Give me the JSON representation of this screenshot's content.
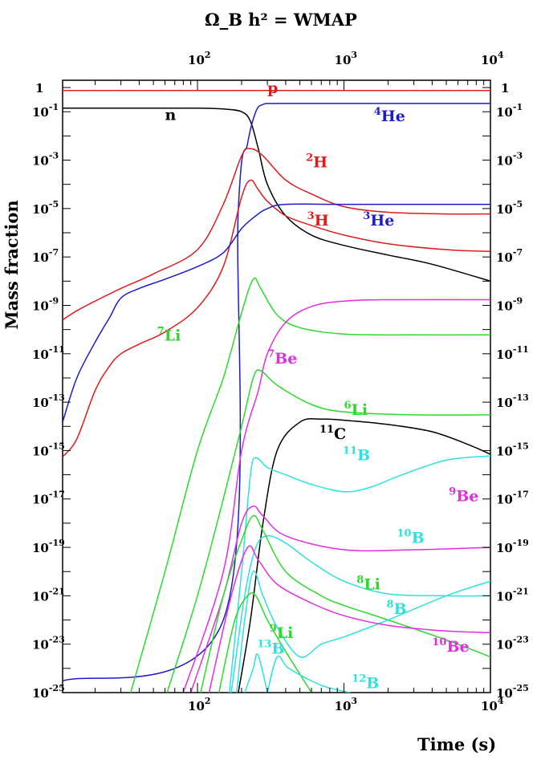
{
  "chart_data": {
    "type": "line",
    "title": "Ω_B h² = WMAP",
    "xlabel": "Time (s)",
    "ylabel": "Mass fraction",
    "x_scale": "log",
    "y_scale": "log",
    "xlim": [
      12,
      10000
    ],
    "ylim": [
      1e-25,
      2
    ],
    "x_ticks": [
      {
        "value": 100,
        "base": "10",
        "exp": "2"
      },
      {
        "value": 1000,
        "base": "10",
        "exp": "3"
      },
      {
        "value": 10000,
        "base": "10",
        "exp": "4"
      }
    ],
    "y_ticks": [
      {
        "value": 1,
        "base": "1",
        "exp": ""
      },
      {
        "value": 0.1,
        "base": "10",
        "exp": "-1"
      },
      {
        "value": 0.001,
        "base": "10",
        "exp": "-3"
      },
      {
        "value": 1e-05,
        "base": "10",
        "exp": "-5"
      },
      {
        "value": 1e-07,
        "base": "10",
        "exp": "-7"
      },
      {
        "value": 1e-09,
        "base": "10",
        "exp": "-9"
      },
      {
        "value": 1e-11,
        "base": "10",
        "exp": "-11"
      },
      {
        "value": 1e-13,
        "base": "10",
        "exp": "-13"
      },
      {
        "value": 1e-15,
        "base": "10",
        "exp": "-15"
      },
      {
        "value": 1e-17,
        "base": "10",
        "exp": "-17"
      },
      {
        "value": 1e-19,
        "base": "10",
        "exp": "-19"
      },
      {
        "value": 1e-21,
        "base": "10",
        "exp": "-21"
      },
      {
        "value": 1e-23,
        "base": "10",
        "exp": "-23"
      },
      {
        "value": 1e-25,
        "base": "10",
        "exp": "-25"
      }
    ],
    "grid": false,
    "colors": {
      "black": "#000000",
      "red": "#dd1c1c",
      "blue": "#1c1cc8",
      "green": "#2ed82e",
      "magenta": "#e02ee0",
      "cyan": "#2fe0e0"
    },
    "series": [
      {
        "name": "p",
        "sup": "",
        "label_at": [
          300,
          0.6
        ],
        "color": "#dd1c1c",
        "points": [
          [
            12,
            0.75
          ],
          [
            100,
            0.75
          ],
          [
            200,
            0.75
          ],
          [
            400,
            0.75
          ],
          [
            1000,
            0.75
          ],
          [
            10000,
            0.75
          ]
        ]
      },
      {
        "name": "n",
        "sup": "",
        "label_at": [
          60,
          0.045
        ],
        "color": "#000000",
        "points": [
          [
            12,
            0.14
          ],
          [
            30,
            0.14
          ],
          [
            100,
            0.14
          ],
          [
            150,
            0.13
          ],
          [
            200,
            0.1
          ],
          [
            230,
            0.04
          ],
          [
            260,
            0.003
          ],
          [
            300,
            0.0001
          ],
          [
            400,
            5e-06
          ],
          [
            600,
            8e-07
          ],
          [
            1000,
            3e-07
          ],
          [
            2000,
            1.2e-07
          ],
          [
            4000,
            5e-08
          ],
          [
            10000,
            1e-08
          ]
        ]
      },
      {
        "name": "He",
        "sup": "4",
        "label_at": [
          1600,
          0.04
        ],
        "color": "#1c1cc8",
        "points": [
          [
            12,
            3e-25
          ],
          [
            150,
            1e-22
          ],
          [
            190,
            1e-05
          ],
          [
            220,
            0.005
          ],
          [
            250,
            0.1
          ],
          [
            280,
            0.2
          ],
          [
            350,
            0.22
          ],
          [
            1000,
            0.22
          ],
          [
            10000,
            0.22
          ]
        ]
      },
      {
        "name": "H",
        "sup": "2",
        "label_at": [
          550,
          0.0005
        ],
        "color": "#dd1c1c",
        "points": [
          [
            12,
            2.5e-10
          ],
          [
            15,
            6e-10
          ],
          [
            20,
            1.5e-09
          ],
          [
            30,
            5e-09
          ],
          [
            50,
            2e-08
          ],
          [
            100,
            2e-07
          ],
          [
            150,
            1.5e-05
          ],
          [
            200,
            0.0015
          ],
          [
            230,
            0.003
          ],
          [
            280,
            0.0015
          ],
          [
            400,
            0.00015
          ],
          [
            600,
            4e-05
          ],
          [
            1000,
            1.2e-05
          ],
          [
            2000,
            7e-06
          ],
          [
            5000,
            6e-06
          ],
          [
            10000,
            6e-06
          ]
        ]
      },
      {
        "name": "H",
        "sup": "3",
        "label_at": [
          560,
          2e-06
        ],
        "color": "#dd1c1c",
        "points": [
          [
            12,
            5.5e-16
          ],
          [
            15,
            3e-15
          ],
          [
            20,
            3e-13
          ],
          [
            25,
            3e-12
          ],
          [
            30,
            1e-11
          ],
          [
            40,
            2.5e-11
          ],
          [
            60,
            8e-11
          ],
          [
            100,
            8e-10
          ],
          [
            150,
            4e-08
          ],
          [
            200,
            3e-05
          ],
          [
            230,
            0.00015
          ],
          [
            260,
            6e-05
          ],
          [
            300,
            2e-05
          ],
          [
            400,
            5e-06
          ],
          [
            600,
            2e-06
          ],
          [
            1000,
            8e-07
          ],
          [
            2000,
            3.5e-07
          ],
          [
            5000,
            2e-07
          ],
          [
            10000,
            1.7e-07
          ]
        ]
      },
      {
        "name": "He",
        "sup": "3",
        "label_at": [
          1350,
          2e-06
        ],
        "color": "#1c1cc8",
        "points": [
          [
            12,
            1.5e-14
          ],
          [
            15,
            1e-12
          ],
          [
            20,
            3e-11
          ],
          [
            25,
            3e-10
          ],
          [
            30,
            2e-09
          ],
          [
            40,
            5e-09
          ],
          [
            60,
            1.2e-08
          ],
          [
            100,
            4e-08
          ],
          [
            150,
            1.5e-07
          ],
          [
            200,
            1.5e-06
          ],
          [
            250,
            5e-06
          ],
          [
            300,
            1e-05
          ],
          [
            400,
            1.5e-05
          ],
          [
            1000,
            1.5e-05
          ],
          [
            10000,
            1.5e-05
          ]
        ]
      },
      {
        "name": "Li",
        "sup": "7",
        "label_at": [
          53,
          3.5e-11
        ],
        "color": "#2ed82e",
        "points": [
          [
            35,
            1e-25
          ],
          [
            60,
            1e-20
          ],
          [
            100,
            1e-15
          ],
          [
            150,
            1e-12
          ],
          [
            200,
            5e-10
          ],
          [
            240,
            1.2e-08
          ],
          [
            270,
            5e-09
          ],
          [
            350,
            4e-10
          ],
          [
            500,
            1.2e-10
          ],
          [
            1000,
            6.5e-11
          ],
          [
            3000,
            6e-11
          ],
          [
            10000,
            6e-11
          ]
        ]
      },
      {
        "name": "Be",
        "sup": "7",
        "label_at": [
          300,
          4e-12
        ],
        "color": "#e02ee0",
        "points": [
          [
            80,
            1e-25
          ],
          [
            150,
            1e-20
          ],
          [
            200,
            1e-15
          ],
          [
            260,
            3e-13
          ],
          [
            300,
            1e-11
          ],
          [
            400,
            2e-10
          ],
          [
            600,
            9e-10
          ],
          [
            1000,
            1.5e-09
          ],
          [
            2000,
            1.7e-09
          ],
          [
            10000,
            1.7e-09
          ]
        ]
      },
      {
        "name": "Li",
        "sup": "6",
        "label_at": [
          1000,
          3e-14
        ],
        "color": "#2ed82e",
        "points": [
          [
            62,
            1e-25
          ],
          [
            100,
            1e-21
          ],
          [
            150,
            1e-17
          ],
          [
            200,
            1e-14
          ],
          [
            240,
            1e-12
          ],
          [
            270,
            2e-12
          ],
          [
            350,
            5e-13
          ],
          [
            600,
            8e-14
          ],
          [
            1000,
            4e-14
          ],
          [
            3000,
            3e-14
          ],
          [
            10000,
            3e-14
          ]
        ]
      },
      {
        "name": "C",
        "sup": "11",
        "label_at": [
          680,
          3e-15
        ],
        "color": "#000000",
        "points": [
          [
            190,
            1e-25
          ],
          [
            230,
            1e-22
          ],
          [
            280,
            1e-18
          ],
          [
            350,
            1e-15
          ],
          [
            500,
            1.5e-14
          ],
          [
            700,
            2e-14
          ],
          [
            1000,
            1.8e-14
          ],
          [
            2000,
            1.2e-14
          ],
          [
            4000,
            6e-15
          ],
          [
            7000,
            1.8e-15
          ],
          [
            10000,
            7e-16
          ]
        ]
      },
      {
        "name": "B",
        "sup": "11",
        "label_at": [
          980,
          4e-16
        ],
        "color": "#2fe0e0",
        "points": [
          [
            165,
            1e-25
          ],
          [
            200,
            1e-20
          ],
          [
            230,
            1e-16
          ],
          [
            250,
            5e-16
          ],
          [
            300,
            2e-16
          ],
          [
            400,
            1e-16
          ],
          [
            600,
            4e-17
          ],
          [
            1000,
            2e-17
          ],
          [
            1500,
            3e-17
          ],
          [
            2500,
            1e-16
          ],
          [
            5000,
            4e-16
          ],
          [
            10000,
            6e-16
          ]
        ]
      },
      {
        "name": "Be",
        "sup": "9",
        "label_at": [
          5200,
          8e-18
        ],
        "color": "#e02ee0",
        "points": [
          [
            90,
            1e-25
          ],
          [
            150,
            1e-21
          ],
          [
            200,
            1e-18
          ],
          [
            240,
            5e-18
          ],
          [
            280,
            2e-18
          ],
          [
            400,
            3e-19
          ],
          [
            1000,
            8e-20
          ],
          [
            3000,
            8e-20
          ],
          [
            10000,
            1e-19
          ]
        ]
      },
      {
        "name": "B",
        "sup": "10",
        "label_at": [
          2300,
          1.5e-19
        ],
        "color": "#2fe0e0",
        "points": [
          [
            170,
            1e-25
          ],
          [
            210,
            1e-21
          ],
          [
            250,
            1e-19
          ],
          [
            300,
            3e-19
          ],
          [
            400,
            1.5e-19
          ],
          [
            600,
            2.5e-20
          ],
          [
            1000,
            4e-21
          ],
          [
            2000,
            1.2e-21
          ],
          [
            5000,
            1e-21
          ],
          [
            10000,
            1e-21
          ]
        ]
      },
      {
        "name": "Li",
        "sup": "8",
        "label_at": [
          1220,
          1.8e-21
        ],
        "color": "#2ed82e",
        "points": [
          [
            105,
            1e-25
          ],
          [
            150,
            1e-21
          ],
          [
            200,
            2e-19
          ],
          [
            240,
            2e-18
          ],
          [
            280,
            5e-19
          ],
          [
            400,
            1e-20
          ],
          [
            700,
            1e-21
          ],
          [
            1000,
            4e-22
          ],
          [
            2000,
            1e-22
          ],
          [
            5000,
            1.5e-23
          ],
          [
            10000,
            3e-24
          ]
        ]
      },
      {
        "name": "B",
        "sup": "8",
        "label_at": [
          1950,
          1.8e-22
        ],
        "color": "#2fe0e0",
        "points": [
          [
            185,
            1e-25
          ],
          [
            210,
            1e-22
          ],
          [
            240,
            1e-20
          ],
          [
            280,
            1e-21
          ],
          [
            350,
            5e-23
          ],
          [
            500,
            3e-24
          ],
          [
            700,
            1e-23
          ],
          [
            1000,
            2e-23
          ],
          [
            2000,
            1e-22
          ],
          [
            5000,
            1e-21
          ],
          [
            10000,
            4e-21
          ]
        ]
      },
      {
        "name": "Be",
        "sup": "10",
        "label_at": [
          4000,
          5e-24
        ],
        "color": "#e02ee0",
        "points": [
          [
            120,
            1e-25
          ],
          [
            170,
            1e-21
          ],
          [
            220,
            1e-19
          ],
          [
            260,
            3e-20
          ],
          [
            350,
            3e-21
          ],
          [
            600,
            5e-22
          ],
          [
            1000,
            1.5e-22
          ],
          [
            2000,
            6e-23
          ],
          [
            5000,
            3.5e-23
          ],
          [
            10000,
            3e-23
          ]
        ]
      },
      {
        "name": "Li",
        "sup": "9",
        "label_at": [
          310,
          1.8e-23
        ],
        "color": "#2ed82e",
        "points": [
          [
            140,
            1e-25
          ],
          [
            180,
            1e-22
          ],
          [
            220,
            1e-21
          ],
          [
            250,
            1e-21
          ],
          [
            300,
            1e-22
          ],
          [
            400,
            5e-24
          ],
          [
            600,
            1e-25
          ]
        ]
      },
      {
        "name": "B",
        "sup": "13",
        "label_at": [
          255,
          4e-24
        ],
        "color": "#2fe0e0",
        "points": [
          [
            210,
            1e-25
          ],
          [
            240,
            1e-24
          ],
          [
            255,
            4e-24
          ],
          [
            275,
            1e-24
          ],
          [
            300,
            1e-25
          ]
        ]
      },
      {
        "name": "B",
        "sup": "12",
        "label_at": [
          1130,
          1.5e-25
        ],
        "color": "#2fe0e0",
        "points": [
          [
            300,
            1e-25
          ],
          [
            350,
            3e-24
          ],
          [
            420,
            1e-24
          ],
          [
            700,
            2e-25
          ],
          [
            1100,
            1e-25
          ]
        ]
      }
    ]
  }
}
